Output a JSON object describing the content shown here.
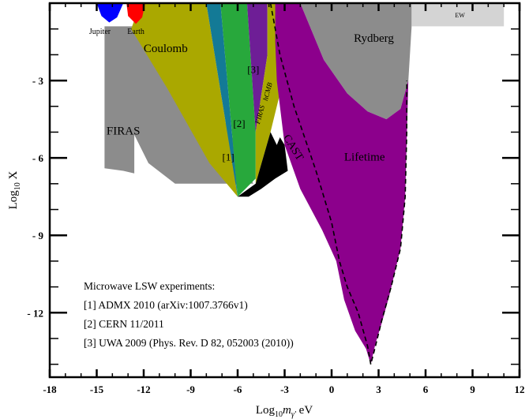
{
  "chart_data": {
    "type": "area",
    "title": "",
    "xlabel": "Log10 mγ' eV",
    "xlabel_parts": {
      "base": "Log",
      "sub": "10",
      "var": "m",
      "var_sub": "γ'",
      "unit": " eV"
    },
    "ylabel": "Log10 X",
    "ylabel_parts": {
      "base": "Log",
      "sub": "10",
      "var": " X"
    },
    "xlim": [
      -18,
      12
    ],
    "ylim": [
      -14.5,
      0
    ],
    "x_ticks": [
      -18,
      -15,
      -12,
      -9,
      -6,
      -3,
      0,
      3,
      6,
      9,
      12
    ],
    "y_ticks": [
      -3,
      -6,
      -9,
      -12
    ],
    "grid": false,
    "regions": [
      {
        "name": "FIRAS",
        "label": "FIRAS",
        "color": "#8c8c8c",
        "polygon": [
          [
            -14.5,
            -0.9
          ],
          [
            -13.3,
            -0.9
          ],
          [
            -11.4,
            -0.9
          ],
          [
            -10,
            -0.9
          ],
          [
            -8,
            -3
          ],
          [
            -5,
            -7
          ],
          [
            -10,
            -7
          ],
          [
            -11.7,
            -6.2
          ],
          [
            -12.6,
            -5.1
          ],
          [
            -12.6,
            -6.6
          ],
          [
            -13.3,
            -6.5
          ],
          [
            -14.5,
            -6.4
          ],
          [
            -14.5,
            -3
          ]
        ]
      },
      {
        "name": "Rydberg",
        "label": "Rydberg",
        "color": "#8c8c8c",
        "polygon": [
          [
            -2,
            0
          ],
          [
            5.2,
            0
          ],
          [
            4.9,
            -3
          ],
          [
            4.4,
            -4.1
          ],
          [
            3.5,
            -4.5
          ],
          [
            2.3,
            -4.2
          ],
          [
            1,
            -3.5
          ],
          [
            -0.5,
            -2.2
          ]
        ]
      },
      {
        "name": "Coulomb",
        "label": "Coulomb",
        "color": "#aaa800",
        "polygon": [
          [
            -12.2,
            0
          ],
          [
            -8,
            0
          ],
          [
            -6,
            -7.5
          ],
          [
            -7.8,
            -6.2
          ],
          [
            -10.5,
            -3.3
          ],
          [
            -12.8,
            -1
          ]
        ]
      },
      {
        "name": "LSW [1]",
        "label": "[1]",
        "color": "#137a96",
        "polygon": [
          [
            -8,
            0
          ],
          [
            -7.1,
            0
          ],
          [
            -6,
            -7.5
          ]
        ]
      },
      {
        "name": "LSW [2]",
        "label": "[2]",
        "color": "#28a83c",
        "polygon": [
          [
            -7.1,
            0
          ],
          [
            -5.4,
            0
          ],
          [
            -4.85,
            -5
          ],
          [
            -4.85,
            -6.8
          ],
          [
            -6,
            -7.5
          ]
        ]
      },
      {
        "name": "LSW [3]",
        "label": "[3]",
        "color": "#6e1e96",
        "polygon": [
          [
            -5.4,
            0
          ],
          [
            -4.1,
            0
          ],
          [
            -4.1,
            -2
          ],
          [
            -4.85,
            -5
          ]
        ]
      },
      {
        "name": "FIRAS / hCMB",
        "label": "FIRAS hCMB",
        "color": "#aaa800",
        "polygon": [
          [
            -4.1,
            0
          ],
          [
            -3.3,
            0
          ],
          [
            -3,
            -1.3
          ],
          [
            -3.3,
            -3.5
          ],
          [
            -3.9,
            -5
          ],
          [
            -4.85,
            -7
          ],
          [
            -4.85,
            -5
          ],
          [
            -4.1,
            -2
          ]
        ]
      },
      {
        "name": "CAST",
        "label": "CAST",
        "color": "#000000",
        "polygon": [
          [
            -6,
            -7.5
          ],
          [
            -4.85,
            -7
          ],
          [
            -3.9,
            -5
          ],
          [
            -3.5,
            -5.5
          ],
          [
            -3.3,
            -5.2
          ],
          [
            -3,
            -5.5
          ],
          [
            -2.8,
            -6.5
          ],
          [
            -3.6,
            -6.8
          ],
          [
            -4.5,
            -7.2
          ],
          [
            -5.3,
            -7.5
          ]
        ]
      },
      {
        "name": "Lifetime",
        "label": "Lifetime",
        "color": "#8c008c",
        "polygon": [
          [
            -3.6,
            0
          ],
          [
            -2,
            0
          ],
          [
            -0.5,
            -2.2
          ],
          [
            1,
            -3.5
          ],
          [
            2.3,
            -4.2
          ],
          [
            3.5,
            -4.5
          ],
          [
            4.4,
            -4.1
          ],
          [
            4.9,
            -3
          ],
          [
            4.7,
            -7.5
          ],
          [
            4.4,
            -9.5
          ],
          [
            3.7,
            -11.3
          ],
          [
            3.2,
            -12.4
          ],
          [
            2.8,
            -13.2
          ],
          [
            2.5,
            -14
          ],
          [
            2.2,
            -13.4
          ],
          [
            1.5,
            -12.7
          ],
          [
            0.8,
            -11.5
          ],
          [
            0.3,
            -10
          ],
          [
            -0.6,
            -8.8
          ],
          [
            -2,
            -7.2
          ],
          [
            -3,
            -5.5
          ],
          [
            -3.5,
            -3
          ],
          [
            -3.6,
            -1.5
          ]
        ]
      },
      {
        "name": "Jupiter",
        "label": "Jupiter",
        "color": "#0000ff",
        "polygon": [
          [
            -15,
            0
          ],
          [
            -13.3,
            0
          ],
          [
            -13.7,
            -0.55
          ],
          [
            -14.2,
            -0.75
          ],
          [
            -14.7,
            -0.5
          ]
        ]
      },
      {
        "name": "Earth",
        "label": "Earth",
        "color": "#ff0000",
        "polygon": [
          [
            -13.1,
            0
          ],
          [
            -11.9,
            0
          ],
          [
            -12.1,
            -0.55
          ],
          [
            -12.5,
            -0.8
          ],
          [
            -13,
            -0.5
          ]
        ]
      },
      {
        "name": "EW",
        "label": "EW",
        "color": "#d4d4d4",
        "polygon": [
          [
            5.1,
            0
          ],
          [
            11,
            0
          ],
          [
            11,
            -0.9
          ],
          [
            5.1,
            -0.9
          ]
        ]
      }
    ],
    "cast_boundary": [
      [
        -3.9,
        0
      ],
      [
        -3.3,
        -2
      ],
      [
        -2.4,
        -4
      ],
      [
        -1,
        -6.5
      ],
      [
        0,
        -8.5
      ],
      [
        0.5,
        -10
      ],
      [
        1,
        -11
      ],
      [
        1.7,
        -12
      ],
      [
        2.3,
        -13.3
      ],
      [
        2.5,
        -14
      ],
      [
        2.8,
        -13.3
      ],
      [
        3.2,
        -12.3
      ],
      [
        3.8,
        -11
      ],
      [
        4.4,
        -9.5
      ],
      [
        4.7,
        -7.5
      ],
      [
        4.8,
        -5
      ],
      [
        4.8,
        -3
      ]
    ],
    "annotations": {
      "heading": "Microwave LSW experiments:",
      "items": [
        "[1] ADMX 2010 (arXiv:1007.3766v1)",
        "[2] CERN 11/2011",
        "[3] UWA 2009 (Phys. Rev. D 82, 052003 (2010))"
      ]
    }
  }
}
